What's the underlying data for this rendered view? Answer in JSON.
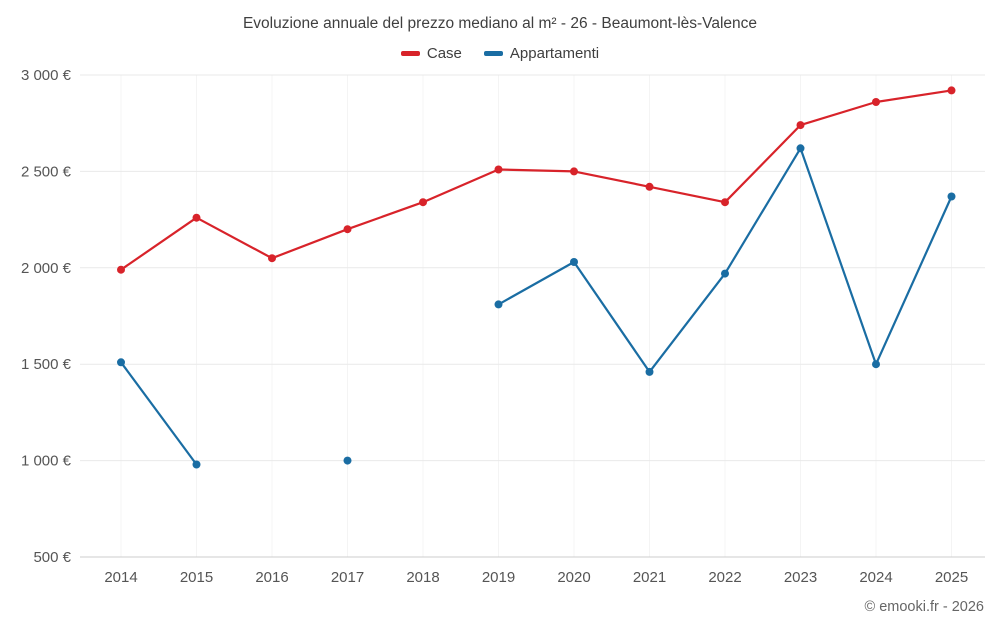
{
  "title": "Evoluzione annuale del prezzo mediano al m² - 26 - Beaumont-lès-Valence",
  "legend": [
    {
      "label": "Case",
      "color": "#d8232a"
    },
    {
      "label": "Appartamenti",
      "color": "#1a6da3"
    }
  ],
  "footer": {
    "credits": "© emooki.fr - 2026"
  },
  "chart_data": {
    "type": "line",
    "title": "Evoluzione annuale del prezzo mediano al m² - 26 - Beaumont-lès-Valence",
    "xlabel": "",
    "ylabel": "",
    "x": [
      2014,
      2015,
      2016,
      2017,
      2018,
      2019,
      2020,
      2021,
      2022,
      2023,
      2024,
      2025
    ],
    "series": [
      {
        "name": "Case",
        "color": "#d8232a",
        "values": [
          1990,
          2260,
          2050,
          2200,
          2340,
          2510,
          2500,
          2420,
          2340,
          2740,
          2860,
          2920
        ]
      },
      {
        "name": "Appartamenti",
        "color": "#1a6da3",
        "values": [
          1510,
          980,
          null,
          1000,
          null,
          1810,
          2030,
          1460,
          1970,
          2620,
          1500,
          2370
        ]
      }
    ],
    "ylim": [
      500,
      3000
    ],
    "y_ticks": [
      {
        "value": 3000,
        "label": "3 000 €"
      },
      {
        "value": 2500,
        "label": "2 500 €"
      },
      {
        "value": 2000,
        "label": "2 000 €"
      },
      {
        "value": 1500,
        "label": "1 500 €"
      },
      {
        "value": 1000,
        "label": "1 000 €"
      },
      {
        "value": 500,
        "label": "500 €"
      }
    ],
    "grid": true,
    "legend_position": "top"
  }
}
